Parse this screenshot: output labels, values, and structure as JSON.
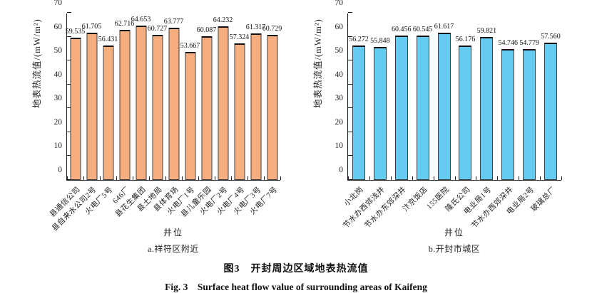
{
  "figure": {
    "caption_zh": "图3　开封周边区域地表热流值",
    "caption_en": "Fig. 3　Surface heat flow value of surrounding areas of Kaifeng"
  },
  "colors": {
    "left_bar": "#F6AE80",
    "right_bar": "#64CBF2",
    "bar_border": "#3d3d3d",
    "axis": "#1a1a1a"
  },
  "chart_data": [
    {
      "type": "bar",
      "title": "a.祥符区附近",
      "xlabel": "井位",
      "ylabel": "地表热流值/(mW/m²)",
      "ylim": [
        0,
        70
      ],
      "yticks": [
        0,
        10,
        20,
        30,
        40,
        50,
        60,
        70
      ],
      "grid": false,
      "legend": "none",
      "bar_color": "#F6AE80",
      "categories": [
        "县通信公司",
        "县自来水公司2号",
        "火电厂5号",
        "646厂",
        "县花生集团",
        "县土地局",
        "县体育场",
        "火电厂1号",
        "县儿童乐园",
        "火电厂2号",
        "火电厂4号",
        "火电厂3号",
        "火电厂7号"
      ],
      "values": [
        59.535,
        61.705,
        56.431,
        62.716,
        64.653,
        60.727,
        63.777,
        53.667,
        60.087,
        64.232,
        57.324,
        61.317,
        60.729
      ]
    },
    {
      "type": "bar",
      "title": "b.开封市城区",
      "xlabel": "井位",
      "ylabel": "地表热流值/(mW/m²)",
      "ylim": [
        0,
        70
      ],
      "yticks": [
        0,
        10,
        20,
        30,
        40,
        50,
        60,
        70
      ],
      "grid": false,
      "legend": "none",
      "bar_color": "#64CBF2",
      "categories": [
        "小北岗",
        "节水办西郊浅井",
        "节水办东郊深井",
        "汴京饭店",
        "155医院",
        "隆氏公司",
        "电业局1号",
        "节水办西郊深井",
        "电业局2号",
        "玻璃总厂"
      ],
      "values": [
        56.272,
        55.848,
        60.456,
        60.545,
        61.617,
        56.176,
        59.821,
        54.746,
        54.779,
        57.56
      ]
    }
  ]
}
